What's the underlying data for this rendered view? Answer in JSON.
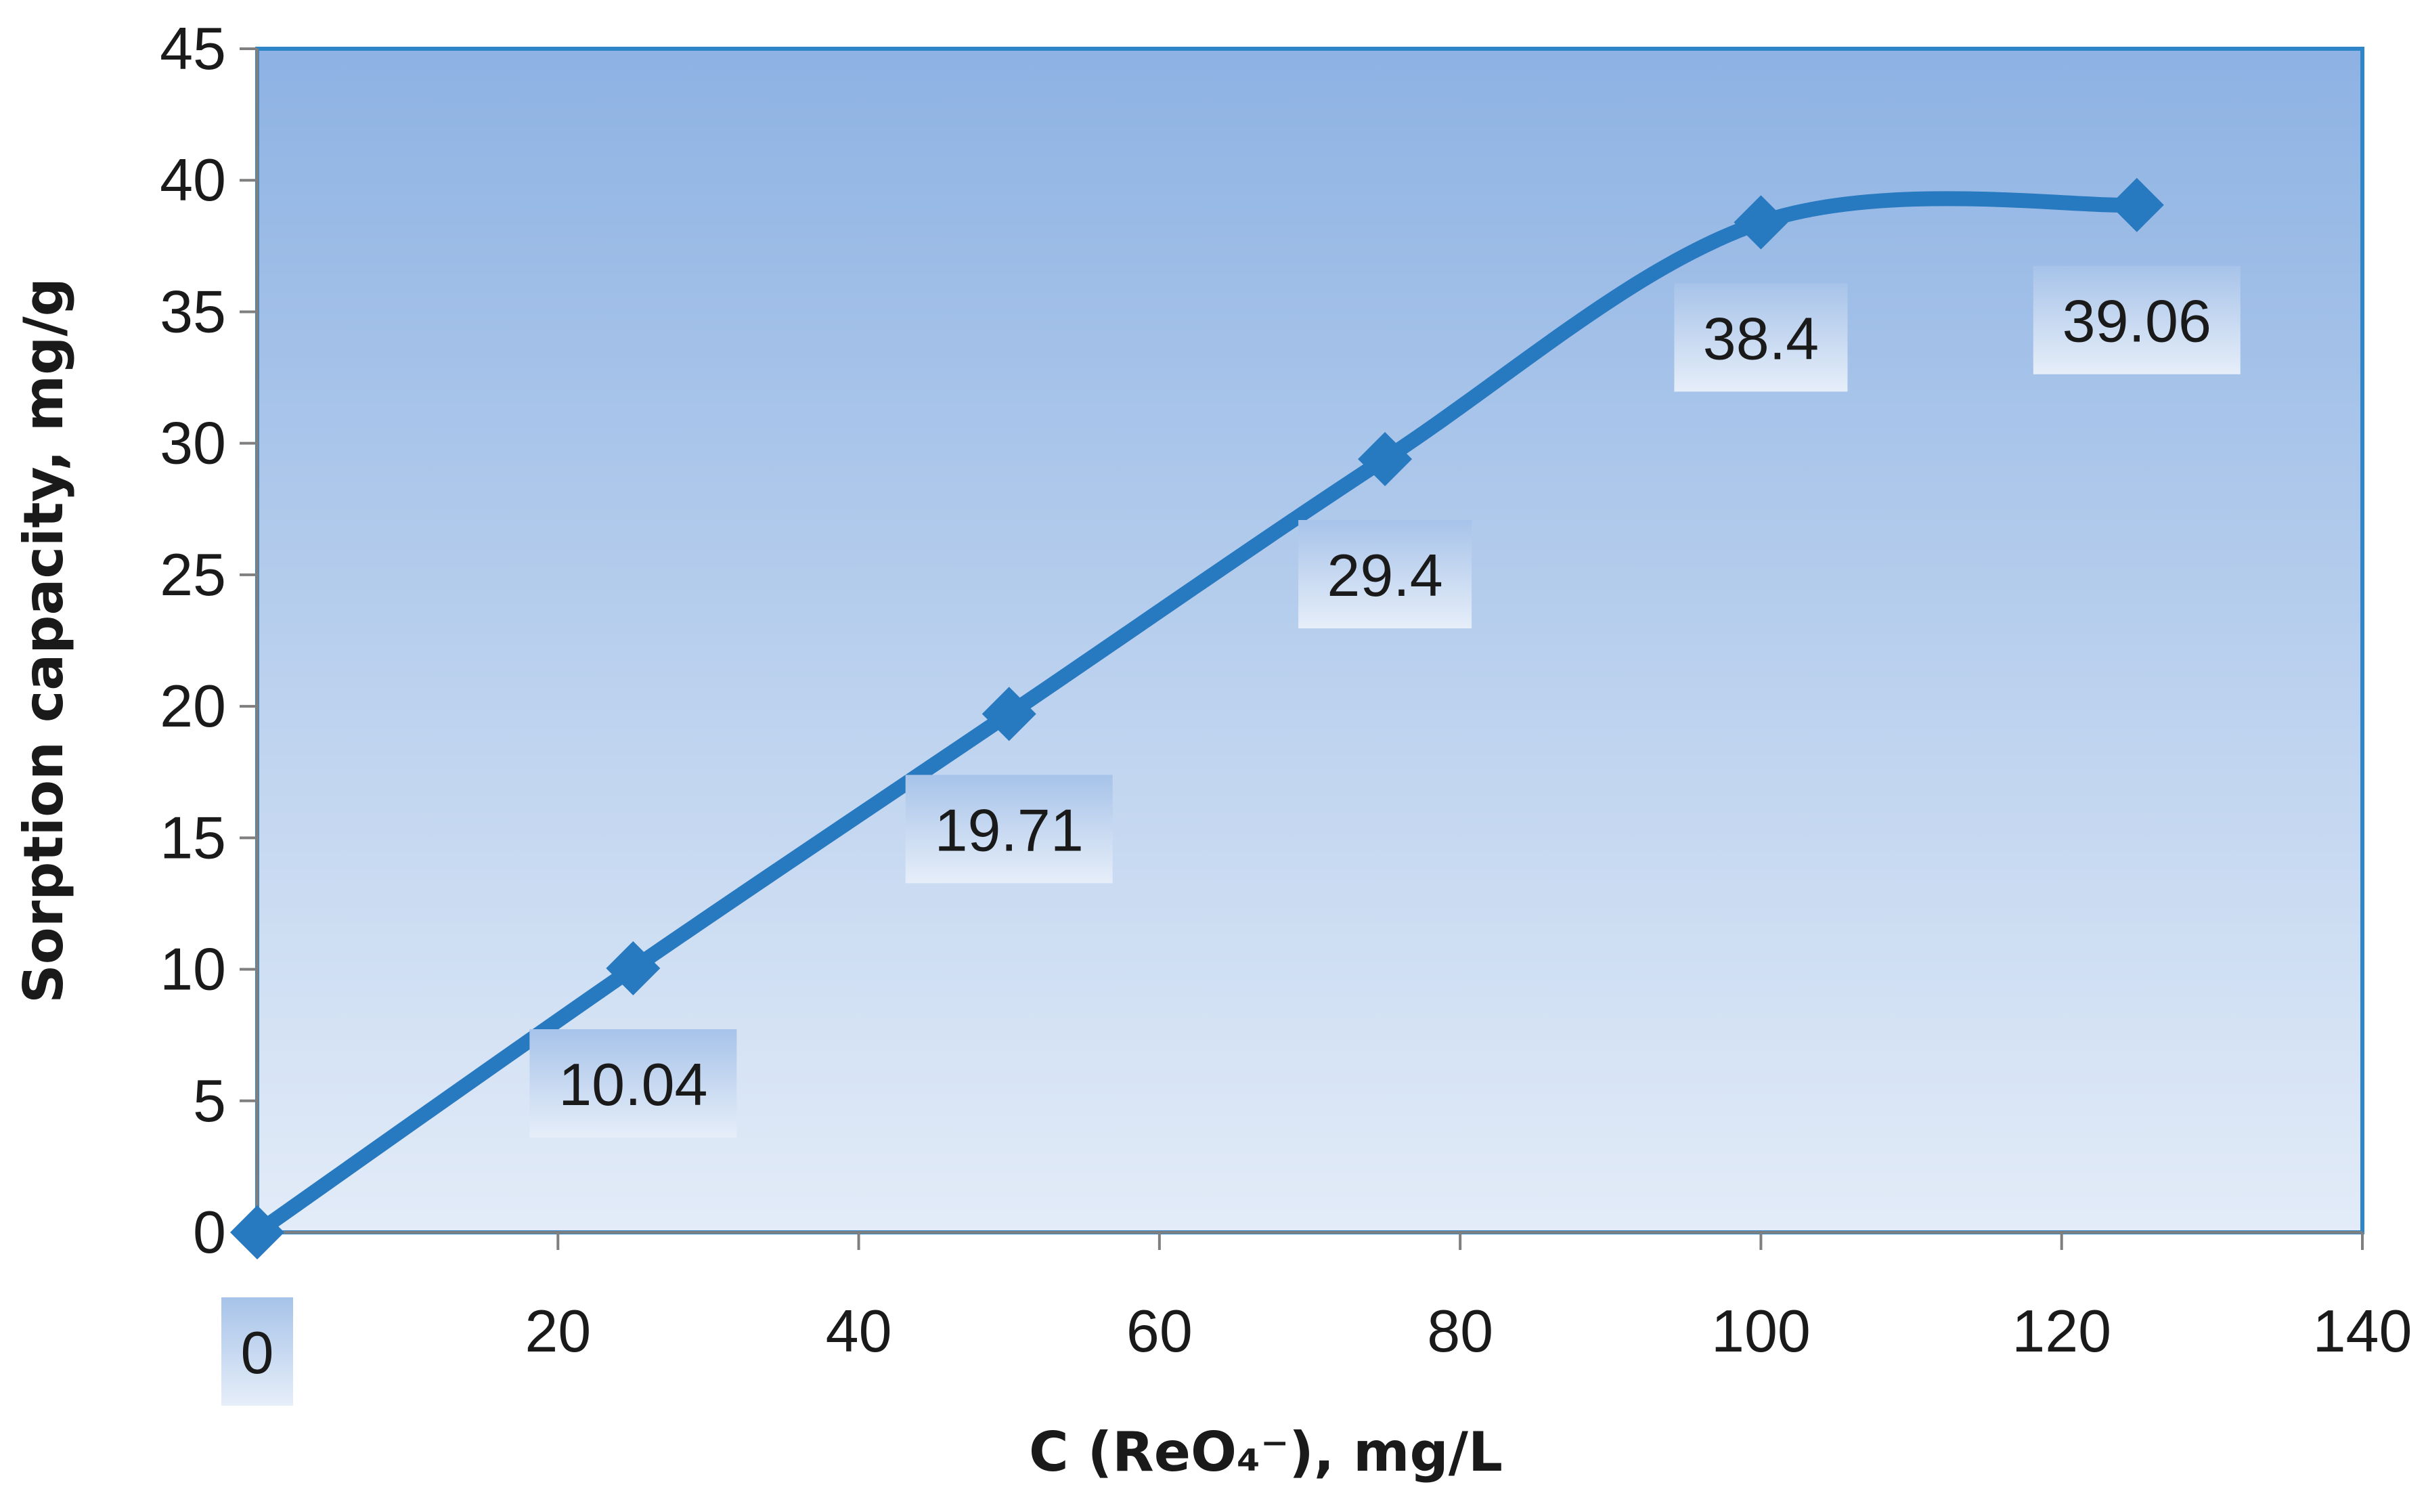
{
  "chart_data": {
    "type": "line",
    "title": "",
    "xlabel": "C (ReO₄⁻), mg/L",
    "ylabel": "Sorption capacity, mg/g",
    "xlim": [
      0,
      140
    ],
    "ylim": [
      0,
      45
    ],
    "xticks": [
      0,
      20,
      40,
      60,
      80,
      100,
      120,
      140
    ],
    "yticks": [
      0,
      5,
      10,
      15,
      20,
      25,
      30,
      35,
      40,
      45
    ],
    "smooth": true,
    "grid": false,
    "legend": "none",
    "marker": "diamond",
    "colors": {
      "line": "#2779c0",
      "plot_bg_top": "#8db2e3",
      "plot_bg_bottom": "#e3ecf8",
      "plot_border": "#2e86c9",
      "label_bg": "#bcd2ee"
    },
    "series": [
      {
        "x": [
          0,
          25,
          50,
          75,
          100,
          125
        ],
        "y": [
          0,
          10.04,
          19.71,
          29.4,
          38.4,
          39.06
        ],
        "labels": [
          "0",
          "10.04",
          "19.71",
          "29.4",
          "38.4",
          "39.06"
        ]
      }
    ]
  }
}
